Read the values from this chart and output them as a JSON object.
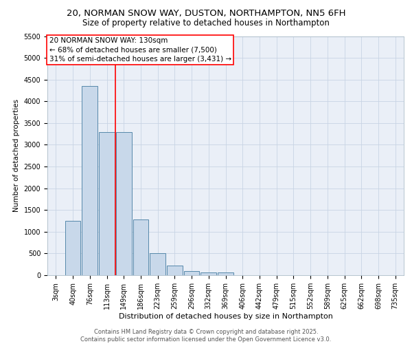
{
  "title_line1": "20, NORMAN SNOW WAY, DUSTON, NORTHAMPTON, NN5 6FH",
  "title_line2": "Size of property relative to detached houses in Northampton",
  "xlabel": "Distribution of detached houses by size in Northampton",
  "ylabel": "Number of detached properties",
  "categories": [
    "3sqm",
    "40sqm",
    "76sqm",
    "113sqm",
    "149sqm",
    "186sqm",
    "223sqm",
    "259sqm",
    "296sqm",
    "332sqm",
    "369sqm",
    "406sqm",
    "442sqm",
    "479sqm",
    "515sqm",
    "552sqm",
    "589sqm",
    "625sqm",
    "662sqm",
    "698sqm",
    "735sqm"
  ],
  "values": [
    0,
    1250,
    4350,
    3300,
    3300,
    1280,
    500,
    220,
    100,
    60,
    60,
    0,
    0,
    0,
    0,
    0,
    0,
    0,
    0,
    0,
    0
  ],
  "bar_color": "#c8d8ea",
  "bar_edge_color": "#5588aa",
  "bar_linewidth": 0.7,
  "vline_color": "red",
  "vline_linewidth": 1.2,
  "vline_x_index": 3.5,
  "ylim_max": 5500,
  "yticks": [
    0,
    500,
    1000,
    1500,
    2000,
    2500,
    3000,
    3500,
    4000,
    4500,
    5000,
    5500
  ],
  "grid_color": "#c8d4e4",
  "bg_color": "#eaeff7",
  "annotation_text": "20 NORMAN SNOW WAY: 130sqm\n← 68% of detached houses are smaller (7,500)\n31% of semi-detached houses are larger (3,431) →",
  "annotation_fontsize": 7.5,
  "footer_line1": "Contains HM Land Registry data © Crown copyright and database right 2025.",
  "footer_line2": "Contains public sector information licensed under the Open Government Licence v3.0.",
  "title_fontsize": 9.5,
  "subtitle_fontsize": 8.5,
  "axis_label_fontsize": 8,
  "tick_fontsize": 7,
  "ylabel_fontsize": 7.5
}
